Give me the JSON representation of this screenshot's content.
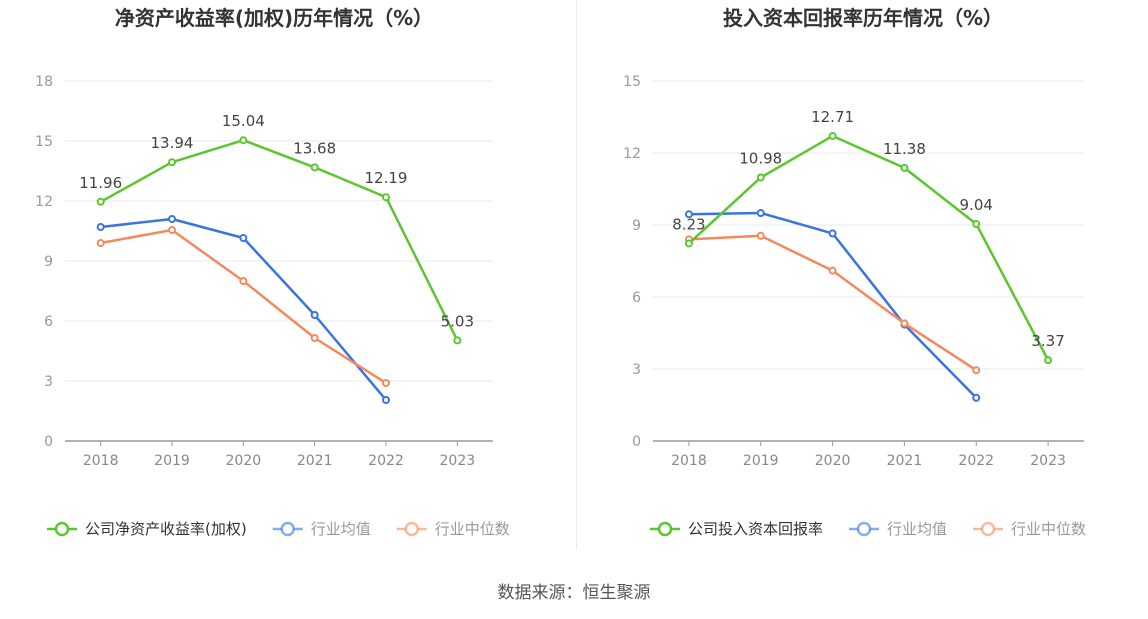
{
  "source": "数据来源：恒生聚源",
  "chart_data": [
    {
      "type": "line",
      "title": "净资产收益率(加权)历年情况（%）",
      "categories": [
        "2018",
        "2019",
        "2020",
        "2021",
        "2022",
        "2023"
      ],
      "ylim": [
        0,
        18
      ],
      "yticks": [
        0,
        3,
        6,
        9,
        12,
        15,
        18
      ],
      "grid": true,
      "legend_position": "bottom",
      "series": [
        {
          "name": "公司净资产收益率(加权)",
          "color": "#5cc62f",
          "values": [
            11.96,
            13.94,
            15.04,
            13.68,
            12.19,
            5.03
          ],
          "labels": [
            "11.96",
            "13.94",
            "15.04",
            "13.68",
            "12.19",
            "5.03"
          ]
        },
        {
          "name": "行业均值",
          "color": "#3b74e0",
          "values": [
            10.7,
            11.1,
            10.15,
            6.3,
            2.05,
            null
          ]
        },
        {
          "name": "行业中位数",
          "color": "#f38a5e",
          "values": [
            9.9,
            10.55,
            8.0,
            5.15,
            2.9,
            null
          ]
        }
      ]
    },
    {
      "type": "line",
      "title": "投入资本回报率历年情况（%）",
      "categories": [
        "2018",
        "2019",
        "2020",
        "2021",
        "2022",
        "2023"
      ],
      "ylim": [
        0,
        15
      ],
      "yticks": [
        0,
        3,
        6,
        9,
        12,
        15
      ],
      "grid": true,
      "legend_position": "bottom",
      "series": [
        {
          "name": "公司投入资本回报率",
          "color": "#5cc62f",
          "values": [
            8.23,
            10.98,
            12.71,
            11.38,
            9.04,
            3.37
          ],
          "labels": [
            "8.23",
            "10.98",
            "12.71",
            "11.38",
            "9.04",
            "3.37"
          ]
        },
        {
          "name": "行业均值",
          "color": "#3b74e0",
          "values": [
            9.45,
            9.5,
            8.65,
            4.85,
            1.8,
            null
          ]
        },
        {
          "name": "行业中位数",
          "color": "#f38a5e",
          "values": [
            8.4,
            8.55,
            7.1,
            4.9,
            2.95,
            null
          ]
        }
      ]
    }
  ]
}
